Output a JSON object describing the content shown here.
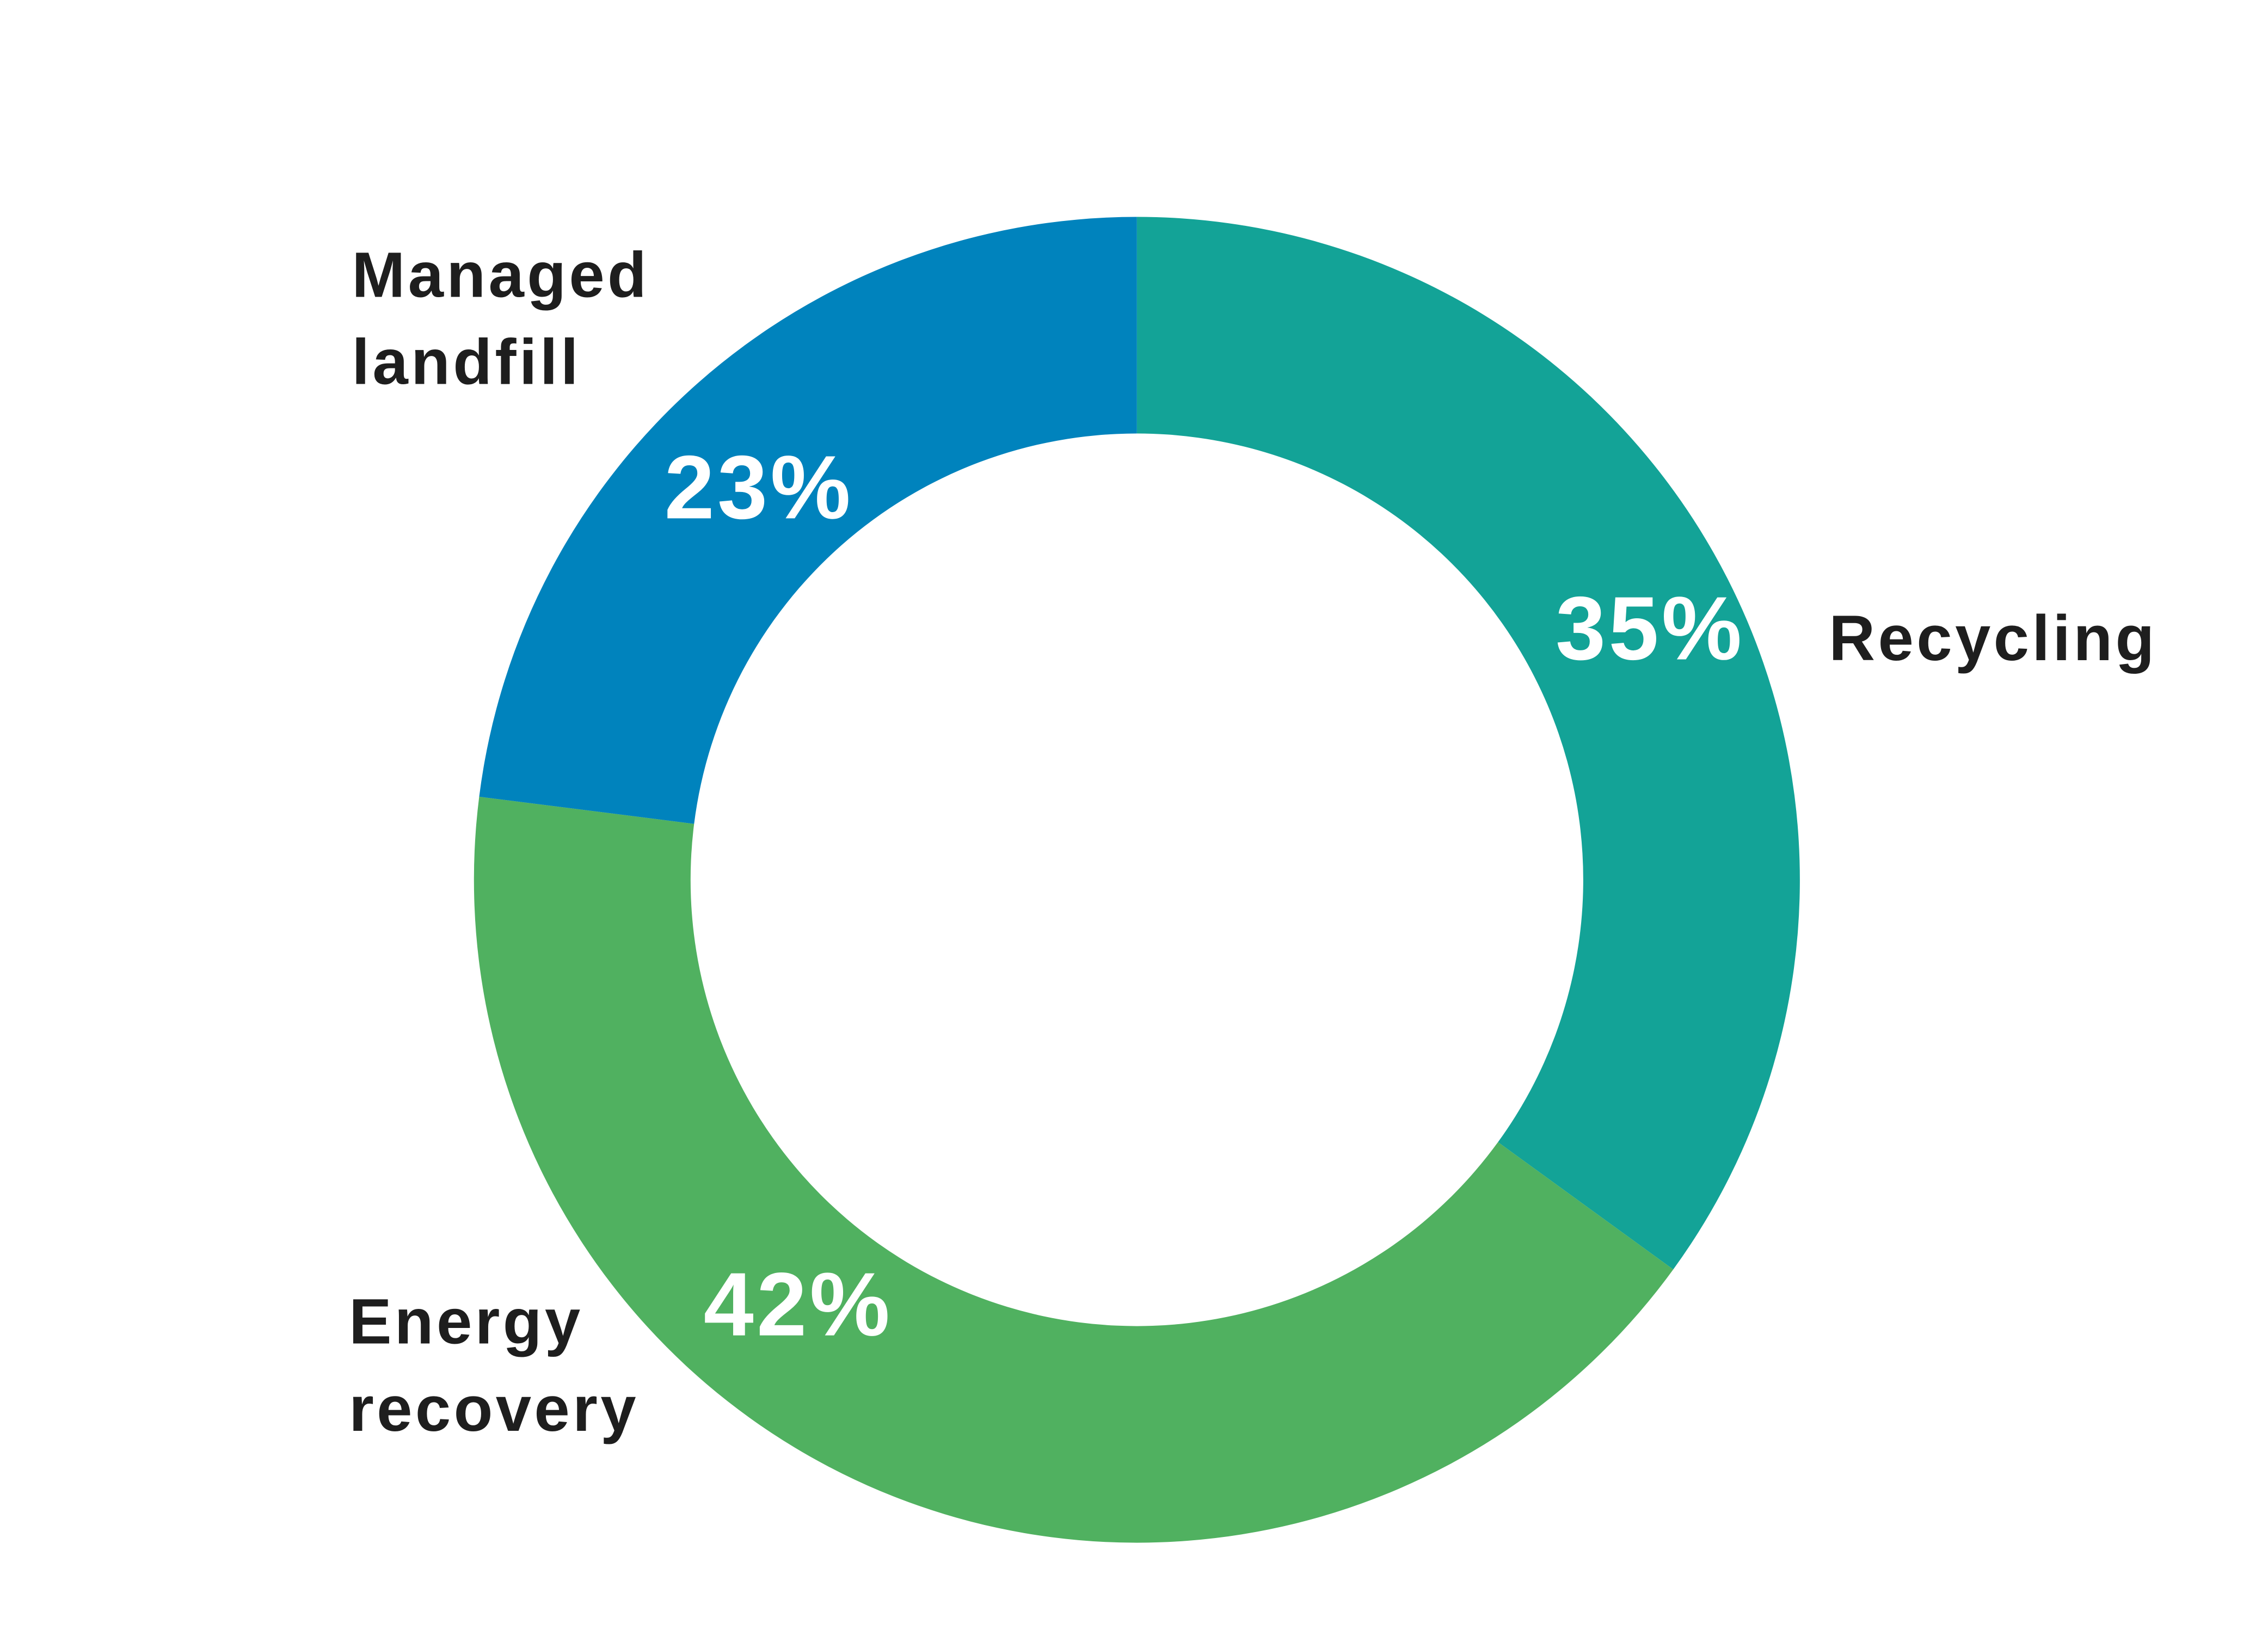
{
  "chart_data": {
    "type": "donut",
    "categories": [
      "Recycling",
      "Energy recovery",
      "Managed landfill"
    ],
    "values": [
      35,
      42,
      23
    ],
    "value_labels": [
      "35%",
      "42%",
      "23%"
    ],
    "colors": [
      "#13a397",
      "#50b160",
      "#0083bd"
    ]
  }
}
